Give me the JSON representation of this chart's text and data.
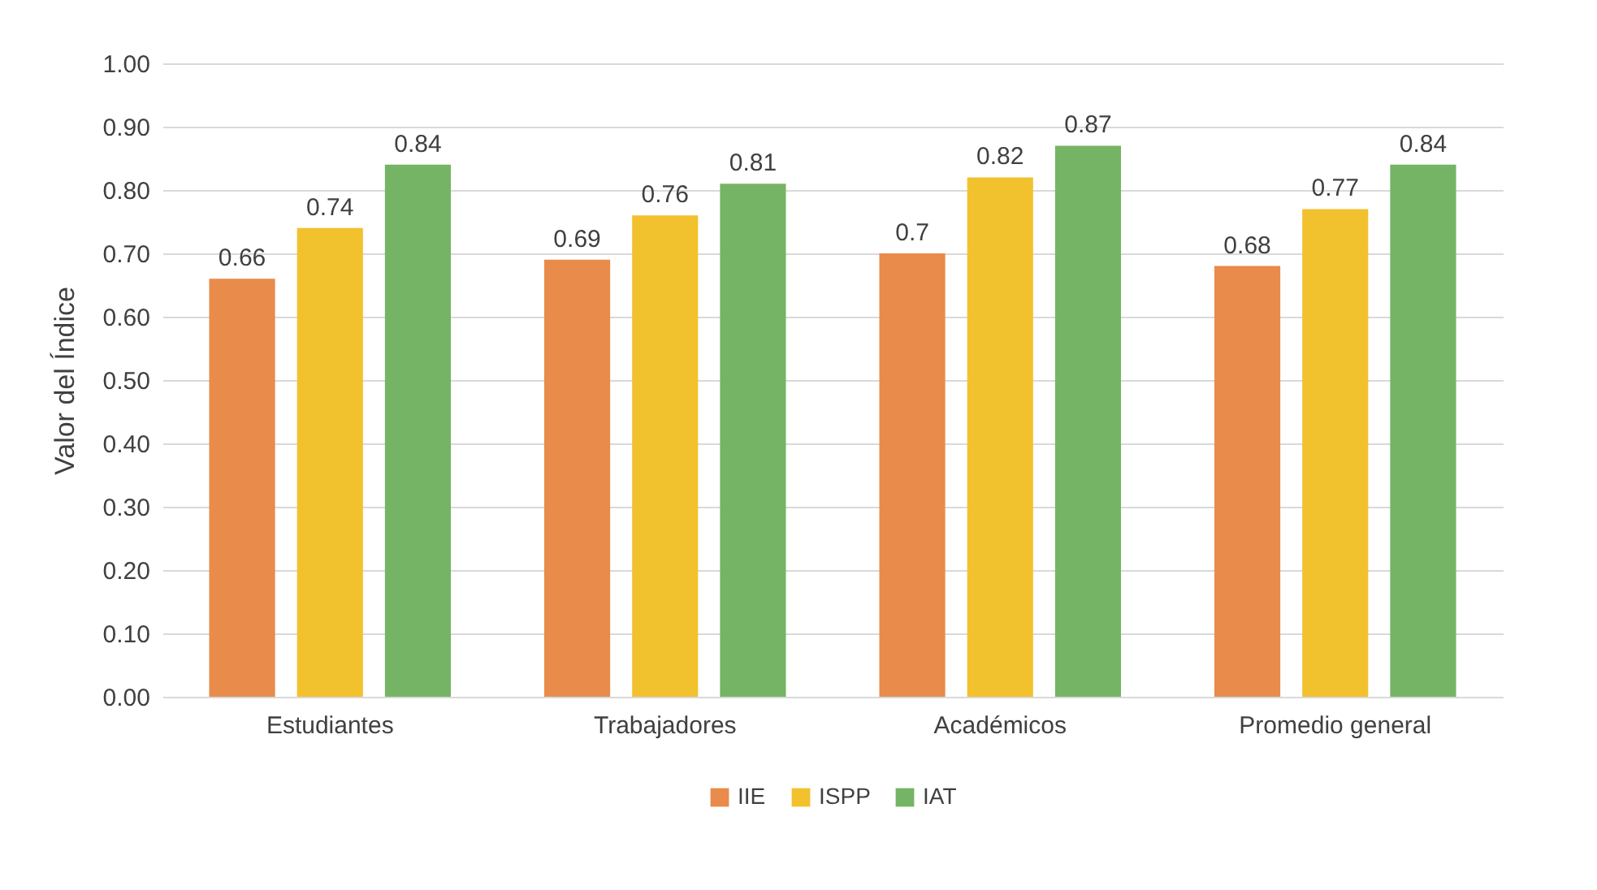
{
  "chart_data": {
    "type": "bar",
    "ylabel": "Valor del Índice",
    "categories": [
      "Estudiantes",
      "Trabajadores",
      "Académicos",
      "Promedio general"
    ],
    "series": [
      {
        "name": "IIE",
        "color": "#e98b4a",
        "values": [
          0.66,
          0.69,
          0.7,
          0.68
        ]
      },
      {
        "name": "ISPP",
        "color": "#f2c12e",
        "values": [
          0.74,
          0.76,
          0.82,
          0.77
        ]
      },
      {
        "name": "IAT",
        "color": "#75b465",
        "values": [
          0.84,
          0.81,
          0.87,
          0.84
        ]
      }
    ],
    "ylim": [
      0,
      1
    ],
    "yticks": [
      {
        "value": 0,
        "label": "0.00"
      },
      {
        "value": 0.1,
        "label": "0.10"
      },
      {
        "value": 0.2,
        "label": "0.20"
      },
      {
        "value": 0.3,
        "label": "0.30"
      },
      {
        "value": 0.4,
        "label": "0.40"
      },
      {
        "value": 0.5,
        "label": "0.50"
      },
      {
        "value": 0.6,
        "label": "0.60"
      },
      {
        "value": 0.7,
        "label": "0.70"
      },
      {
        "value": 0.8,
        "label": "0.80"
      },
      {
        "value": 0.9,
        "label": "0.90"
      },
      {
        "value": 1,
        "label": "1.00"
      }
    ],
    "grid": "y",
    "legend": "bottom",
    "data_labels": true
  }
}
